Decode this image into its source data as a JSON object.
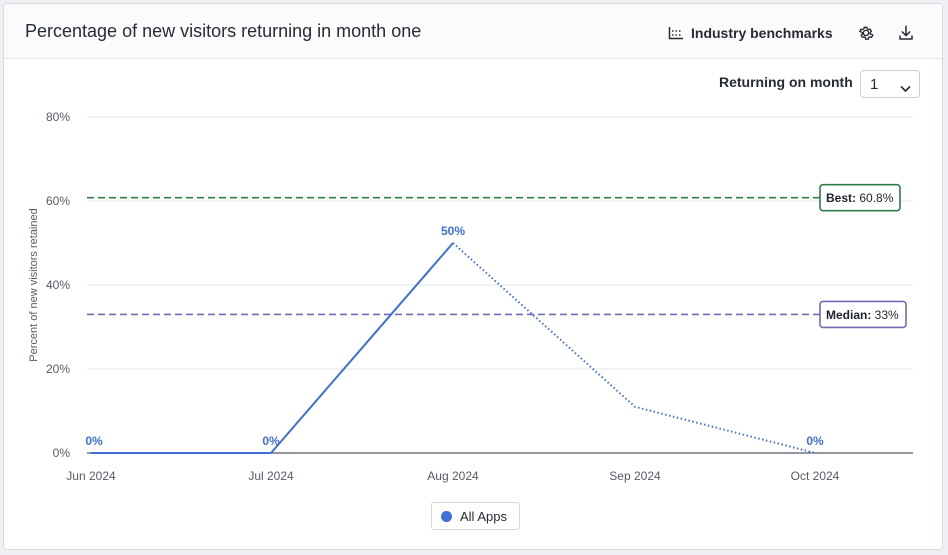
{
  "header": {
    "title": "Percentage of new visitors returning in month one",
    "benchmarks_label": "Industry benchmarks"
  },
  "controls": {
    "returning_label": "Returning on month",
    "returning_value": "1"
  },
  "colors": {
    "series": "#3f6fd8",
    "best": "#2e7d45",
    "median": "#7b66b8",
    "grid": "#e3e5e9"
  },
  "chart_data": {
    "type": "line",
    "ylabel": "Percent of new visitors retained",
    "xlabel": "",
    "ylim": [
      0,
      80
    ],
    "y_ticks": [
      0,
      20,
      40,
      60,
      80
    ],
    "y_tick_labels": [
      "0%",
      "20%",
      "40%",
      "60%",
      "80%"
    ],
    "x_ticks": [
      "Jun 2024",
      "Jul 2024",
      "Aug 2024",
      "Sep 2024",
      "Oct 2024"
    ],
    "grid": true,
    "legend_position": "bottom-center",
    "series": [
      {
        "name": "All Apps",
        "x": [
          "Jun 2024",
          "Jul 2024",
          "Aug 2024",
          "Sep 2024",
          "Oct 2024"
        ],
        "values": [
          0,
          0,
          50,
          11,
          0
        ],
        "data_labels": [
          "0%",
          "0%",
          "50%",
          "",
          "0%"
        ],
        "solid_until_index": 2
      }
    ],
    "reference_lines": [
      {
        "name": "Best",
        "value": 60.8,
        "label_key": "Best:",
        "label_value": "60.8%"
      },
      {
        "name": "Median",
        "value": 33,
        "label_key": "Median:",
        "label_value": "33%"
      }
    ]
  }
}
